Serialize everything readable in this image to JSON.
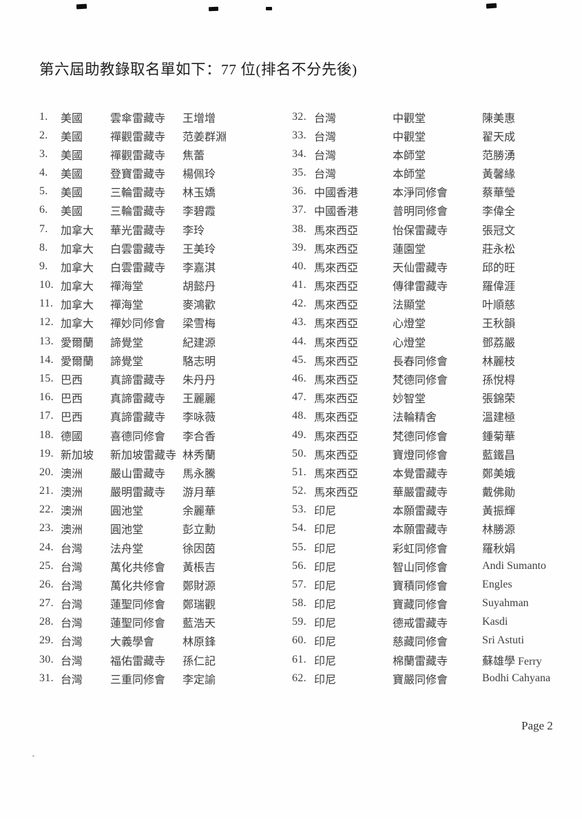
{
  "page": {
    "title": "第六屆助教錄取名單如下：77 位(排名不分先後)",
    "page_number": "Page 2"
  },
  "columns": {
    "left": [
      {
        "no": "1.",
        "region": "美國",
        "org": "雲傘雷藏寺",
        "name": "王增增"
      },
      {
        "no": "2.",
        "region": "美國",
        "org": "禪觀雷藏寺",
        "name": "范姜群淵"
      },
      {
        "no": "3.",
        "region": "美國",
        "org": "禪觀雷藏寺",
        "name": "焦蕾"
      },
      {
        "no": "4.",
        "region": "美國",
        "org": "登寶雷藏寺",
        "name": "楊佩玲"
      },
      {
        "no": "5.",
        "region": "美國",
        "org": "三輪雷藏寺",
        "name": "林玉嬌"
      },
      {
        "no": "6.",
        "region": "美國",
        "org": "三輪雷藏寺",
        "name": "李碧霞"
      },
      {
        "no": "7.",
        "region": "加拿大",
        "org": "華光雷藏寺",
        "name": "李玲"
      },
      {
        "no": "8.",
        "region": "加拿大",
        "org": "白雲雷藏寺",
        "name": "王美玲"
      },
      {
        "no": "9.",
        "region": "加拿大",
        "org": "白雲雷藏寺",
        "name": "李嘉淇"
      },
      {
        "no": "10.",
        "region": "加拿大",
        "org": "禪海堂",
        "name": "胡懿丹"
      },
      {
        "no": "11.",
        "region": "加拿大",
        "org": "禪海堂",
        "name": "麥鴻歡"
      },
      {
        "no": "12.",
        "region": "加拿大",
        "org": "禪妙同修會",
        "name": "梁雪梅"
      },
      {
        "no": "13.",
        "region": "愛爾蘭",
        "org": "諦覺堂",
        "name": "紀建源"
      },
      {
        "no": "14.",
        "region": "愛爾蘭",
        "org": "諦覺堂",
        "name": "駱志明"
      },
      {
        "no": "15.",
        "region": "巴西",
        "org": "真諦雷藏寺",
        "name": "朱丹丹"
      },
      {
        "no": "16.",
        "region": "巴西",
        "org": "真諦雷藏寺",
        "name": "王麗麗"
      },
      {
        "no": "17.",
        "region": "巴西",
        "org": "真諦雷藏寺",
        "name": "李咏薇"
      },
      {
        "no": "18.",
        "region": "德國",
        "org": "喜德同修會",
        "name": "李合香"
      },
      {
        "no": "19.",
        "region": "新加坡",
        "org": "新加坡雷藏寺",
        "name": "林秀蘭"
      },
      {
        "no": "20.",
        "region": "澳洲",
        "org": "嚴山雷藏寺",
        "name": "馬永騰"
      },
      {
        "no": "21.",
        "region": "澳洲",
        "org": "嚴明雷藏寺",
        "name": "游月華"
      },
      {
        "no": "22.",
        "region": "澳洲",
        "org": "圓池堂",
        "name": "余麗華"
      },
      {
        "no": "23.",
        "region": "澳洲",
        "org": "圓池堂",
        "name": "彭立勳"
      },
      {
        "no": "24.",
        "region": "台灣",
        "org": "法舟堂",
        "name": "徐因茵"
      },
      {
        "no": "25.",
        "region": "台灣",
        "org": "萬化共修會",
        "name": "黃棖吉"
      },
      {
        "no": "26.",
        "region": "台灣",
        "org": "萬化共修會",
        "name": "鄭財源"
      },
      {
        "no": "27.",
        "region": "台灣",
        "org": "蓮聖同修會",
        "name": "鄭瑞觀"
      },
      {
        "no": "28.",
        "region": "台灣",
        "org": "蓮聖同修會",
        "name": "藍浩天"
      },
      {
        "no": "29.",
        "region": "台灣",
        "org": "大義學會",
        "name": "林原鋒"
      },
      {
        "no": "30.",
        "region": "台灣",
        "org": "福佑雷藏寺",
        "name": "孫仁記"
      },
      {
        "no": "31.",
        "region": "台灣",
        "org": "三重同修會",
        "name": "李定諭"
      }
    ],
    "right": [
      {
        "no": "32.",
        "region": "台灣",
        "org": "中觀堂",
        "name": "陳美惠"
      },
      {
        "no": "33.",
        "region": "台灣",
        "org": "中觀堂",
        "name": "翟天成"
      },
      {
        "no": "34.",
        "region": "台灣",
        "org": "本師堂",
        "name": "范勝湧"
      },
      {
        "no": "35.",
        "region": "台灣",
        "org": "本師堂",
        "name": "黃馨緣"
      },
      {
        "no": "36.",
        "region": "中國香港",
        "org": "本淨同修會",
        "name": "蔡華瑩"
      },
      {
        "no": "37.",
        "region": "中國香港",
        "org": "普明同修會",
        "name": "李偉全"
      },
      {
        "no": "38.",
        "region": "馬來西亞",
        "org": "怡保雷藏寺",
        "name": "張冠文"
      },
      {
        "no": "39.",
        "region": "馬來西亞",
        "org": "蓮園堂",
        "name": "莊永松"
      },
      {
        "no": "40.",
        "region": "馬來西亞",
        "org": "天仙雷藏寺",
        "name": "邱的旺"
      },
      {
        "no": "41.",
        "region": "馬來西亞",
        "org": "傳律雷藏寺",
        "name": "羅偉涯"
      },
      {
        "no": "42.",
        "region": "馬來西亞",
        "org": "法顯堂",
        "name": "叶順慈"
      },
      {
        "no": "43.",
        "region": "馬來西亞",
        "org": "心燈堂",
        "name": "王秋韻"
      },
      {
        "no": "44.",
        "region": "馬來西亞",
        "org": "心燈堂",
        "name": "鄧荔嚴"
      },
      {
        "no": "45.",
        "region": "馬來西亞",
        "org": "長春同修會",
        "name": "林麗枝"
      },
      {
        "no": "46.",
        "region": "馬來西亞",
        "org": "梵德同修會",
        "name": "孫悅棏"
      },
      {
        "no": "47.",
        "region": "馬來西亞",
        "org": "妙智堂",
        "name": "張錦荣"
      },
      {
        "no": "48.",
        "region": "馬來西亞",
        "org": "法輪精舍",
        "name": "溫建極"
      },
      {
        "no": "49.",
        "region": "馬來西亞",
        "org": "梵德同修會",
        "name": "鍾菊華"
      },
      {
        "no": "50.",
        "region": "馬來西亞",
        "org": "寶燈同修會",
        "name": "藍鐵昌"
      },
      {
        "no": "51.",
        "region": "馬來西亞",
        "org": "本覺雷藏寺",
        "name": "鄭美娥"
      },
      {
        "no": "52.",
        "region": "馬來西亞",
        "org": "華嚴雷藏寺",
        "name": "戴佛勛"
      },
      {
        "no": "53.",
        "region": "印尼",
        "org": "本願雷藏寺",
        "name": "黃振輝"
      },
      {
        "no": "54.",
        "region": "印尼",
        "org": "本願雷藏寺",
        "name": "林勝源"
      },
      {
        "no": "55.",
        "region": "印尼",
        "org": "彩虹同修會",
        "name": "羅秋娟"
      },
      {
        "no": "56.",
        "region": "印尼",
        "org": "智山同修會",
        "name": "Andi Sumanto"
      },
      {
        "no": "57.",
        "region": "印尼",
        "org": "寶積同修會",
        "name": "Engles"
      },
      {
        "no": "58.",
        "region": "印尼",
        "org": "寶藏同修會",
        "name": "Suyahman"
      },
      {
        "no": "59.",
        "region": "印尼",
        "org": "德戒雷藏寺",
        "name": "Kasdi"
      },
      {
        "no": "60.",
        "region": "印尼",
        "org": "慈藏同修會",
        "name": "Sri Astuti"
      },
      {
        "no": "61.",
        "region": "印尼",
        "org": "棉蘭雷藏寺",
        "name": "蘇雄學 Ferry"
      },
      {
        "no": "62.",
        "region": "印尼",
        "org": "寶嚴同修會",
        "name": "Bodhi Cahyana"
      }
    ]
  }
}
